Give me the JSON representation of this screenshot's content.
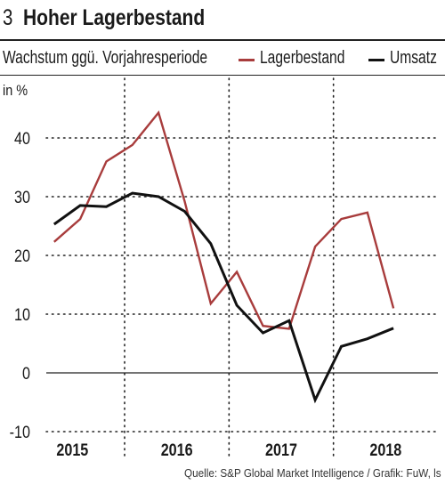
{
  "header": {
    "figure_number": "3",
    "title": "Hoher Lagerbestand"
  },
  "subtitle": "Wachstum ggü. Vorjahresperiode",
  "legend": [
    {
      "label": "Lagerbestand",
      "color": "#a83c3c"
    },
    {
      "label": "Umsatz",
      "color": "#111111"
    }
  ],
  "source": "Quelle: S&P Global Market Intelligence / Grafik: FuW, ls",
  "chart_data": {
    "type": "line",
    "ylabel": "in %",
    "ylim": [
      -10,
      50
    ],
    "yticks": [
      -10,
      0,
      10,
      20,
      30,
      40
    ],
    "xlim": [
      2014.8,
      2018.55
    ],
    "xtick_labels": [
      {
        "label": "2015",
        "x": 2015.05
      },
      {
        "label": "2016",
        "x": 2016.05
      },
      {
        "label": "2017",
        "x": 2017.05
      },
      {
        "label": "2018",
        "x": 2018.05
      }
    ],
    "year_separators": [
      2015.55,
      2016.55,
      2017.55
    ],
    "grid": true,
    "series": [
      {
        "name": "Lagerbestand",
        "color": "#a83c3c",
        "x": [
          2014.875,
          2015.125,
          2015.375,
          2015.625,
          2015.875,
          2016.125,
          2016.375,
          2016.625,
          2016.875,
          2017.125,
          2017.375,
          2017.625,
          2017.875,
          2018.125
        ],
        "y": [
          22.3,
          26.2,
          36.0,
          38.8,
          44.3,
          29.2,
          11.8,
          17.2,
          8.0,
          7.5,
          21.5,
          26.2,
          27.3,
          11.0
        ]
      },
      {
        "name": "Umsatz",
        "color": "#111111",
        "x": [
          2014.875,
          2015.125,
          2015.375,
          2015.625,
          2015.875,
          2016.125,
          2016.375,
          2016.625,
          2016.875,
          2017.125,
          2017.375,
          2017.625,
          2017.875,
          2018.125
        ],
        "y": [
          25.3,
          28.5,
          28.3,
          30.6,
          30.0,
          27.5,
          22.0,
          11.5,
          6.8,
          8.9,
          -4.6,
          4.5,
          5.8,
          7.6
        ]
      }
    ]
  }
}
